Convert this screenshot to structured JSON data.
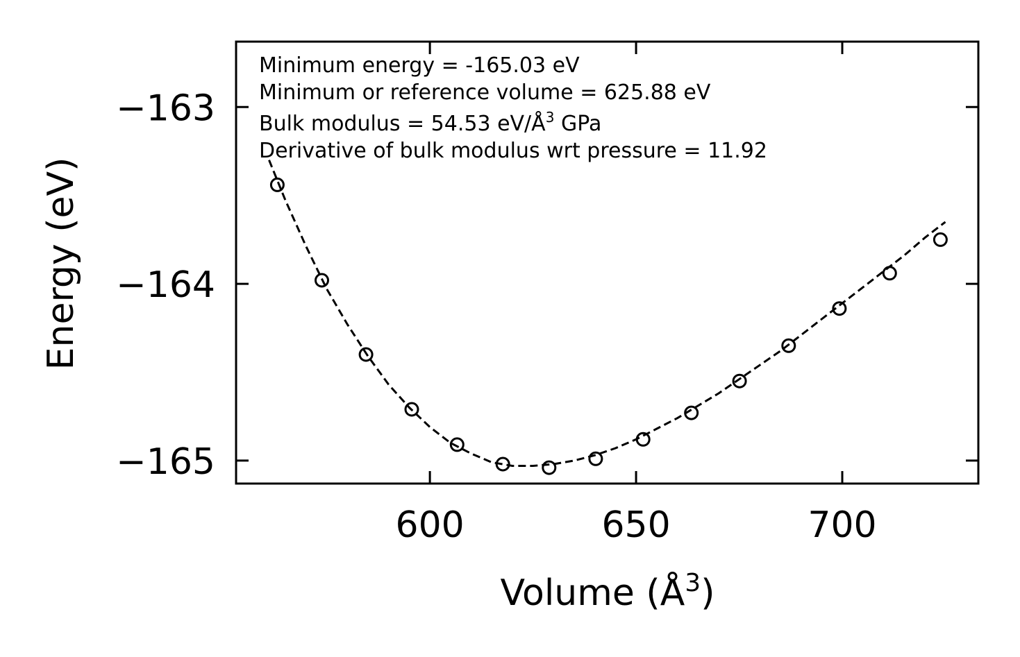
{
  "chart_data": {
    "type": "scatter",
    "title": "",
    "xlabel": "Volume (Å",
    "xlabel_sup": "3",
    "xlabel_close": ")",
    "ylabel": "Energy (eV)",
    "xlim": [
      553,
      733
    ],
    "ylim": [
      -165.13,
      -162.63
    ],
    "xticks": [
      600,
      650,
      700
    ],
    "xtick_labels": [
      "600",
      "650",
      "700"
    ],
    "yticks": [
      -163,
      -164,
      -165
    ],
    "ytick_labels": [
      "−163",
      "−164",
      "−165"
    ],
    "grid": false,
    "series": [
      {
        "name": "data",
        "style": "open-circle",
        "x": [
          563.0,
          573.8,
          584.5,
          595.6,
          606.6,
          617.7,
          628.9,
          640.2,
          651.7,
          663.4,
          675.1,
          687.0,
          699.3,
          711.5,
          723.8
        ],
        "y": [
          -163.44,
          -163.98,
          -164.4,
          -164.71,
          -164.91,
          -165.02,
          -165.04,
          -164.99,
          -164.88,
          -164.73,
          -164.55,
          -164.35,
          -164.14,
          -163.94,
          -163.75
        ]
      },
      {
        "name": "fit",
        "style": "dashed-line",
        "x": [
          561,
          565,
          570,
          575,
          580,
          585,
          590,
          595,
          600,
          605,
          610,
          615,
          620,
          625,
          630,
          635,
          640,
          645,
          650,
          655,
          660,
          665,
          670,
          675,
          680,
          685,
          690,
          695,
          700,
          705,
          710,
          715,
          720,
          725
        ],
        "y": [
          -163.3,
          -163.53,
          -163.79,
          -164.03,
          -164.23,
          -164.41,
          -164.57,
          -164.7,
          -164.81,
          -164.9,
          -164.96,
          -165.01,
          -165.03,
          -165.03,
          -165.02,
          -165.0,
          -164.97,
          -164.93,
          -164.88,
          -164.82,
          -164.76,
          -164.69,
          -164.62,
          -164.54,
          -164.46,
          -164.38,
          -164.29,
          -164.2,
          -164.11,
          -164.02,
          -163.93,
          -163.84,
          -163.74,
          -163.65
        ]
      }
    ],
    "annotations": [
      "Minimum energy = -165.03 eV",
      "Minimum or reference volume = 625.88 eV",
      "Derivative of bulk modulus wrt pressure = 11.92"
    ],
    "bulk_modulus_label": "Bulk modulus = 54.53 eV/Å",
    "bulk_modulus_sup": "3",
    "bulk_modulus_unit": " GPa",
    "colors": {
      "line": "#000000",
      "marker": "#000000",
      "background": "#ffffff"
    }
  }
}
